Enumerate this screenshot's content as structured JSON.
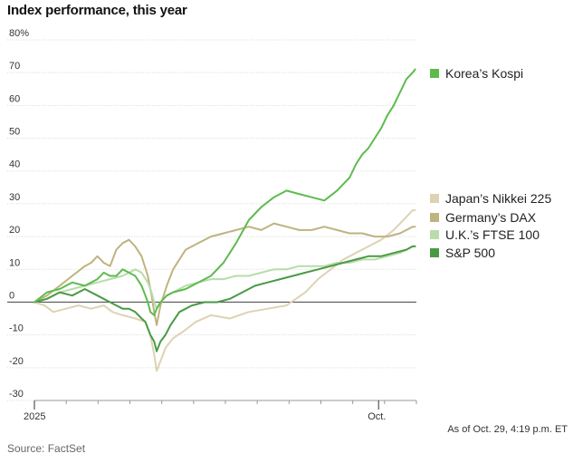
{
  "chart_data": {
    "type": "line",
    "title": "Index performance, this year",
    "xlabel": "",
    "ylabel": "",
    "ylim": [
      -30,
      80
    ],
    "yticks": [
      "80%",
      "70",
      "60",
      "50",
      "40",
      "30",
      "20",
      "10",
      "0",
      "-10",
      "-20",
      "-30"
    ],
    "ytick_values": [
      80,
      70,
      60,
      50,
      40,
      30,
      20,
      10,
      0,
      -10,
      -20,
      -30
    ],
    "xlim": [
      0,
      303
    ],
    "xticks": [
      {
        "label": "2025",
        "x": 0
      },
      {
        "label": "Oct.",
        "x": 273
      }
    ],
    "x_unit": "days since Jan. 1, 2025",
    "series": [
      {
        "name": "Japan's Nikkei 225",
        "label": "Japan’s Nikkei 225",
        "color": "#ddd3b3",
        "x": [
          0,
          8,
          15,
          25,
          35,
          45,
          55,
          62,
          70,
          80,
          88,
          92,
          95,
          97,
          100,
          104,
          110,
          118,
          128,
          140,
          155,
          170,
          185,
          200,
          215,
          225,
          235,
          245,
          255,
          265,
          275,
          285,
          295,
          300,
          302
        ],
        "y": [
          0,
          -1,
          -3,
          -2,
          -1,
          -2,
          -1,
          -3,
          -4,
          -5,
          -6,
          -10,
          -16,
          -21,
          -18,
          -14,
          -11,
          -9,
          -6,
          -4,
          -5,
          -3,
          -2,
          -1,
          3,
          7,
          10,
          13,
          15,
          17,
          19,
          22,
          26,
          28,
          28
        ]
      },
      {
        "name": "Germany's DAX",
        "label": "Germany’s DAX",
        "color": "#bfb380",
        "x": [
          0,
          10,
          20,
          30,
          40,
          45,
          50,
          55,
          60,
          65,
          70,
          75,
          80,
          85,
          90,
          93,
          95,
          97,
          100,
          105,
          110,
          120,
          130,
          140,
          150,
          160,
          170,
          180,
          190,
          200,
          210,
          220,
          230,
          240,
          250,
          260,
          270,
          280,
          290,
          295,
          300,
          302
        ],
        "y": [
          0,
          2,
          5,
          8,
          11,
          12,
          14,
          12,
          11,
          16,
          18,
          19,
          17,
          14,
          8,
          2,
          -3,
          -7,
          -1,
          5,
          10,
          16,
          18,
          20,
          21,
          22,
          23,
          22,
          24,
          23,
          22,
          22,
          23,
          22,
          21,
          21,
          20,
          20,
          21,
          22,
          23,
          23
        ]
      },
      {
        "name": "U.K.'s FTSE 100",
        "label": "U.K.’s FTSE 100",
        "color": "#b8dcaa",
        "x": [
          0,
          10,
          20,
          30,
          40,
          50,
          60,
          70,
          80,
          85,
          90,
          93,
          95,
          97,
          100,
          105,
          110,
          120,
          130,
          140,
          150,
          160,
          170,
          180,
          190,
          200,
          210,
          220,
          230,
          240,
          250,
          260,
          270,
          280,
          290,
          295,
          300,
          302
        ],
        "y": [
          0,
          1,
          3,
          4,
          5,
          6,
          7,
          8,
          10,
          9,
          6,
          3,
          0,
          -2,
          0,
          2,
          3,
          5,
          6,
          7,
          7,
          8,
          8,
          9,
          10,
          10,
          11,
          11,
          11,
          12,
          12,
          13,
          13,
          14,
          15,
          16,
          17,
          17
        ]
      },
      {
        "name": "S&P 500",
        "label": "S&P 500",
        "color": "#4a9a45",
        "x": [
          0,
          10,
          20,
          30,
          40,
          50,
          60,
          65,
          70,
          75,
          80,
          85,
          88,
          90,
          92,
          95,
          97,
          100,
          104,
          108,
          115,
          125,
          135,
          145,
          155,
          165,
          175,
          185,
          195,
          205,
          215,
          225,
          235,
          245,
          255,
          265,
          275,
          285,
          295,
          300,
          302
        ],
        "y": [
          0,
          1,
          3,
          2,
          4,
          2,
          0,
          -1,
          -2,
          -2,
          -3,
          -5,
          -6,
          -8,
          -10,
          -12,
          -15,
          -12,
          -10,
          -7,
          -3,
          -1,
          0,
          0,
          1,
          3,
          5,
          6,
          7,
          8,
          9,
          10,
          11,
          12,
          13,
          14,
          14,
          15,
          16,
          17,
          17
        ]
      },
      {
        "name": "Korea's Kospi",
        "label": "Korea’s Kospi",
        "color": "#5dbb4e",
        "x": [
          0,
          10,
          20,
          30,
          40,
          50,
          55,
          60,
          65,
          70,
          75,
          80,
          85,
          88,
          90,
          92,
          95,
          97,
          100,
          105,
          110,
          120,
          130,
          140,
          150,
          160,
          170,
          180,
          190,
          200,
          210,
          220,
          230,
          240,
          250,
          255,
          260,
          265,
          270,
          275,
          280,
          285,
          290,
          295,
          300,
          302
        ],
        "y": [
          0,
          3,
          4,
          6,
          5,
          7,
          9,
          8,
          8,
          10,
          9,
          8,
          5,
          2,
          0,
          -3,
          -4,
          -2,
          0,
          2,
          3,
          4,
          6,
          8,
          12,
          18,
          25,
          29,
          32,
          34,
          33,
          32,
          31,
          34,
          38,
          42,
          45,
          47,
          50,
          53,
          57,
          60,
          64,
          68,
          70,
          71
        ]
      }
    ]
  },
  "annotation": {
    "note": "As of Oct. 29, 4:19 p.m. ET",
    "source": "Source: FactSet"
  }
}
